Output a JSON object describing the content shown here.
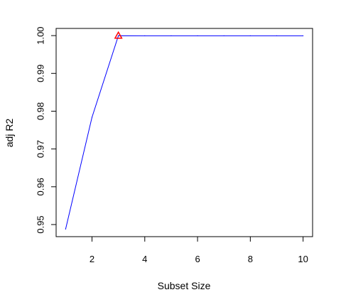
{
  "chart_data": {
    "type": "line",
    "xlabel": "Subset Size",
    "ylabel": "adj R2",
    "x": [
      1,
      2,
      3,
      4,
      5,
      6,
      7,
      8,
      9,
      10
    ],
    "series": [
      {
        "values": [
          0.9488,
          0.9784,
          0.99997,
          0.99996,
          0.99996,
          0.99996,
          0.99996,
          0.99996,
          0.99996,
          0.99996
        ],
        "color": "#0000ff"
      }
    ],
    "highlight": {
      "x": 3,
      "y": 0.99997,
      "marker": "triangle",
      "color": "#ff0000"
    },
    "xlim": [
      0.64,
      10.36
    ],
    "ylim": [
      0.9468,
      1.0019
    ],
    "xticks": [
      2,
      4,
      6,
      8,
      10
    ],
    "yticks": [
      0.95,
      0.96,
      0.97,
      0.98,
      0.99,
      1.0
    ],
    "xtick_labels": [
      "2",
      "4",
      "6",
      "8",
      "10"
    ],
    "ytick_labels": [
      "0.95",
      "0.96",
      "0.97",
      "0.98",
      "0.99",
      "1.00"
    ],
    "grid": false
  }
}
